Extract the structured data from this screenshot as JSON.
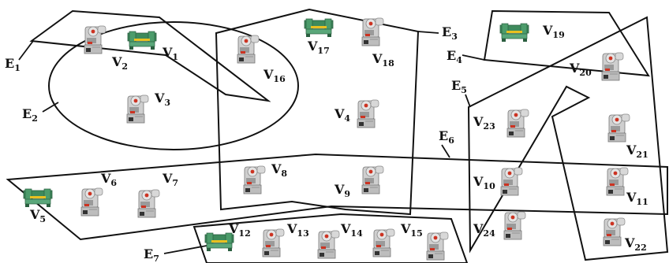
{
  "edges": [
    {
      "id": "E1",
      "letter": "E",
      "sub": "1"
    },
    {
      "id": "E2",
      "letter": "E",
      "sub": "2"
    },
    {
      "id": "E3",
      "letter": "E",
      "sub": "3"
    },
    {
      "id": "E4",
      "letter": "E",
      "sub": "4"
    },
    {
      "id": "E5",
      "letter": "E",
      "sub": "5"
    },
    {
      "id": "E6",
      "letter": "E",
      "sub": "6"
    },
    {
      "id": "E7",
      "letter": "E",
      "sub": "7"
    }
  ],
  "vertices": [
    {
      "id": "V1",
      "letter": "V",
      "sub": "1",
      "icon": "shearing-machine-icon"
    },
    {
      "id": "V2",
      "letter": "V",
      "sub": "2",
      "icon": "punch-press-icon"
    },
    {
      "id": "V3",
      "letter": "V",
      "sub": "3",
      "icon": "punch-press-icon"
    },
    {
      "id": "V4",
      "letter": "V",
      "sub": "4",
      "icon": "punch-press-icon"
    },
    {
      "id": "V5",
      "letter": "V",
      "sub": "5",
      "icon": "shearing-machine-icon"
    },
    {
      "id": "V6",
      "letter": "V",
      "sub": "6",
      "icon": "punch-press-icon"
    },
    {
      "id": "V7",
      "letter": "V",
      "sub": "7",
      "icon": "punch-press-icon"
    },
    {
      "id": "V8",
      "letter": "V",
      "sub": "8",
      "icon": "punch-press-icon"
    },
    {
      "id": "V9",
      "letter": "V",
      "sub": "9",
      "icon": "punch-press-icon"
    },
    {
      "id": "V10",
      "letter": "V",
      "sub": "10",
      "icon": "punch-press-icon"
    },
    {
      "id": "V11",
      "letter": "V",
      "sub": "11",
      "icon": "punch-press-icon"
    },
    {
      "id": "V12",
      "letter": "V",
      "sub": "12",
      "icon": "shearing-machine-icon"
    },
    {
      "id": "V13",
      "letter": "V",
      "sub": "13",
      "icon": "punch-press-icon"
    },
    {
      "id": "V14",
      "letter": "V",
      "sub": "14",
      "icon": "punch-press-icon"
    },
    {
      "id": "V15",
      "letter": "V",
      "sub": "15",
      "icon": "punch-press-icon"
    },
    {
      "id": "V16",
      "letter": "V",
      "sub": "16",
      "icon": "punch-press-icon"
    },
    {
      "id": "V17",
      "letter": "V",
      "sub": "17",
      "icon": "shearing-machine-icon"
    },
    {
      "id": "V18",
      "letter": "V",
      "sub": "18",
      "icon": "punch-press-icon"
    },
    {
      "id": "V19",
      "letter": "V",
      "sub": "19",
      "icon": "shearing-machine-icon"
    },
    {
      "id": "V20",
      "letter": "V",
      "sub": "20",
      "icon": "punch-press-icon"
    },
    {
      "id": "V21",
      "letter": "V",
      "sub": "21",
      "icon": "punch-press-icon"
    },
    {
      "id": "V22",
      "letter": "V",
      "sub": "22",
      "icon": "punch-press-icon"
    },
    {
      "id": "V23",
      "letter": "V",
      "sub": "23",
      "icon": "punch-press-icon"
    },
    {
      "id": "V24",
      "letter": "V",
      "sub": "24",
      "icon": "punch-press-icon"
    }
  ],
  "colors": {
    "outline": "#111111",
    "press_body": "#c9c9c9",
    "press_dark": "#7a7a7a",
    "press_red": "#cc3322",
    "shear_green": "#3e8a5c",
    "shear_yellow": "#e8c020"
  }
}
